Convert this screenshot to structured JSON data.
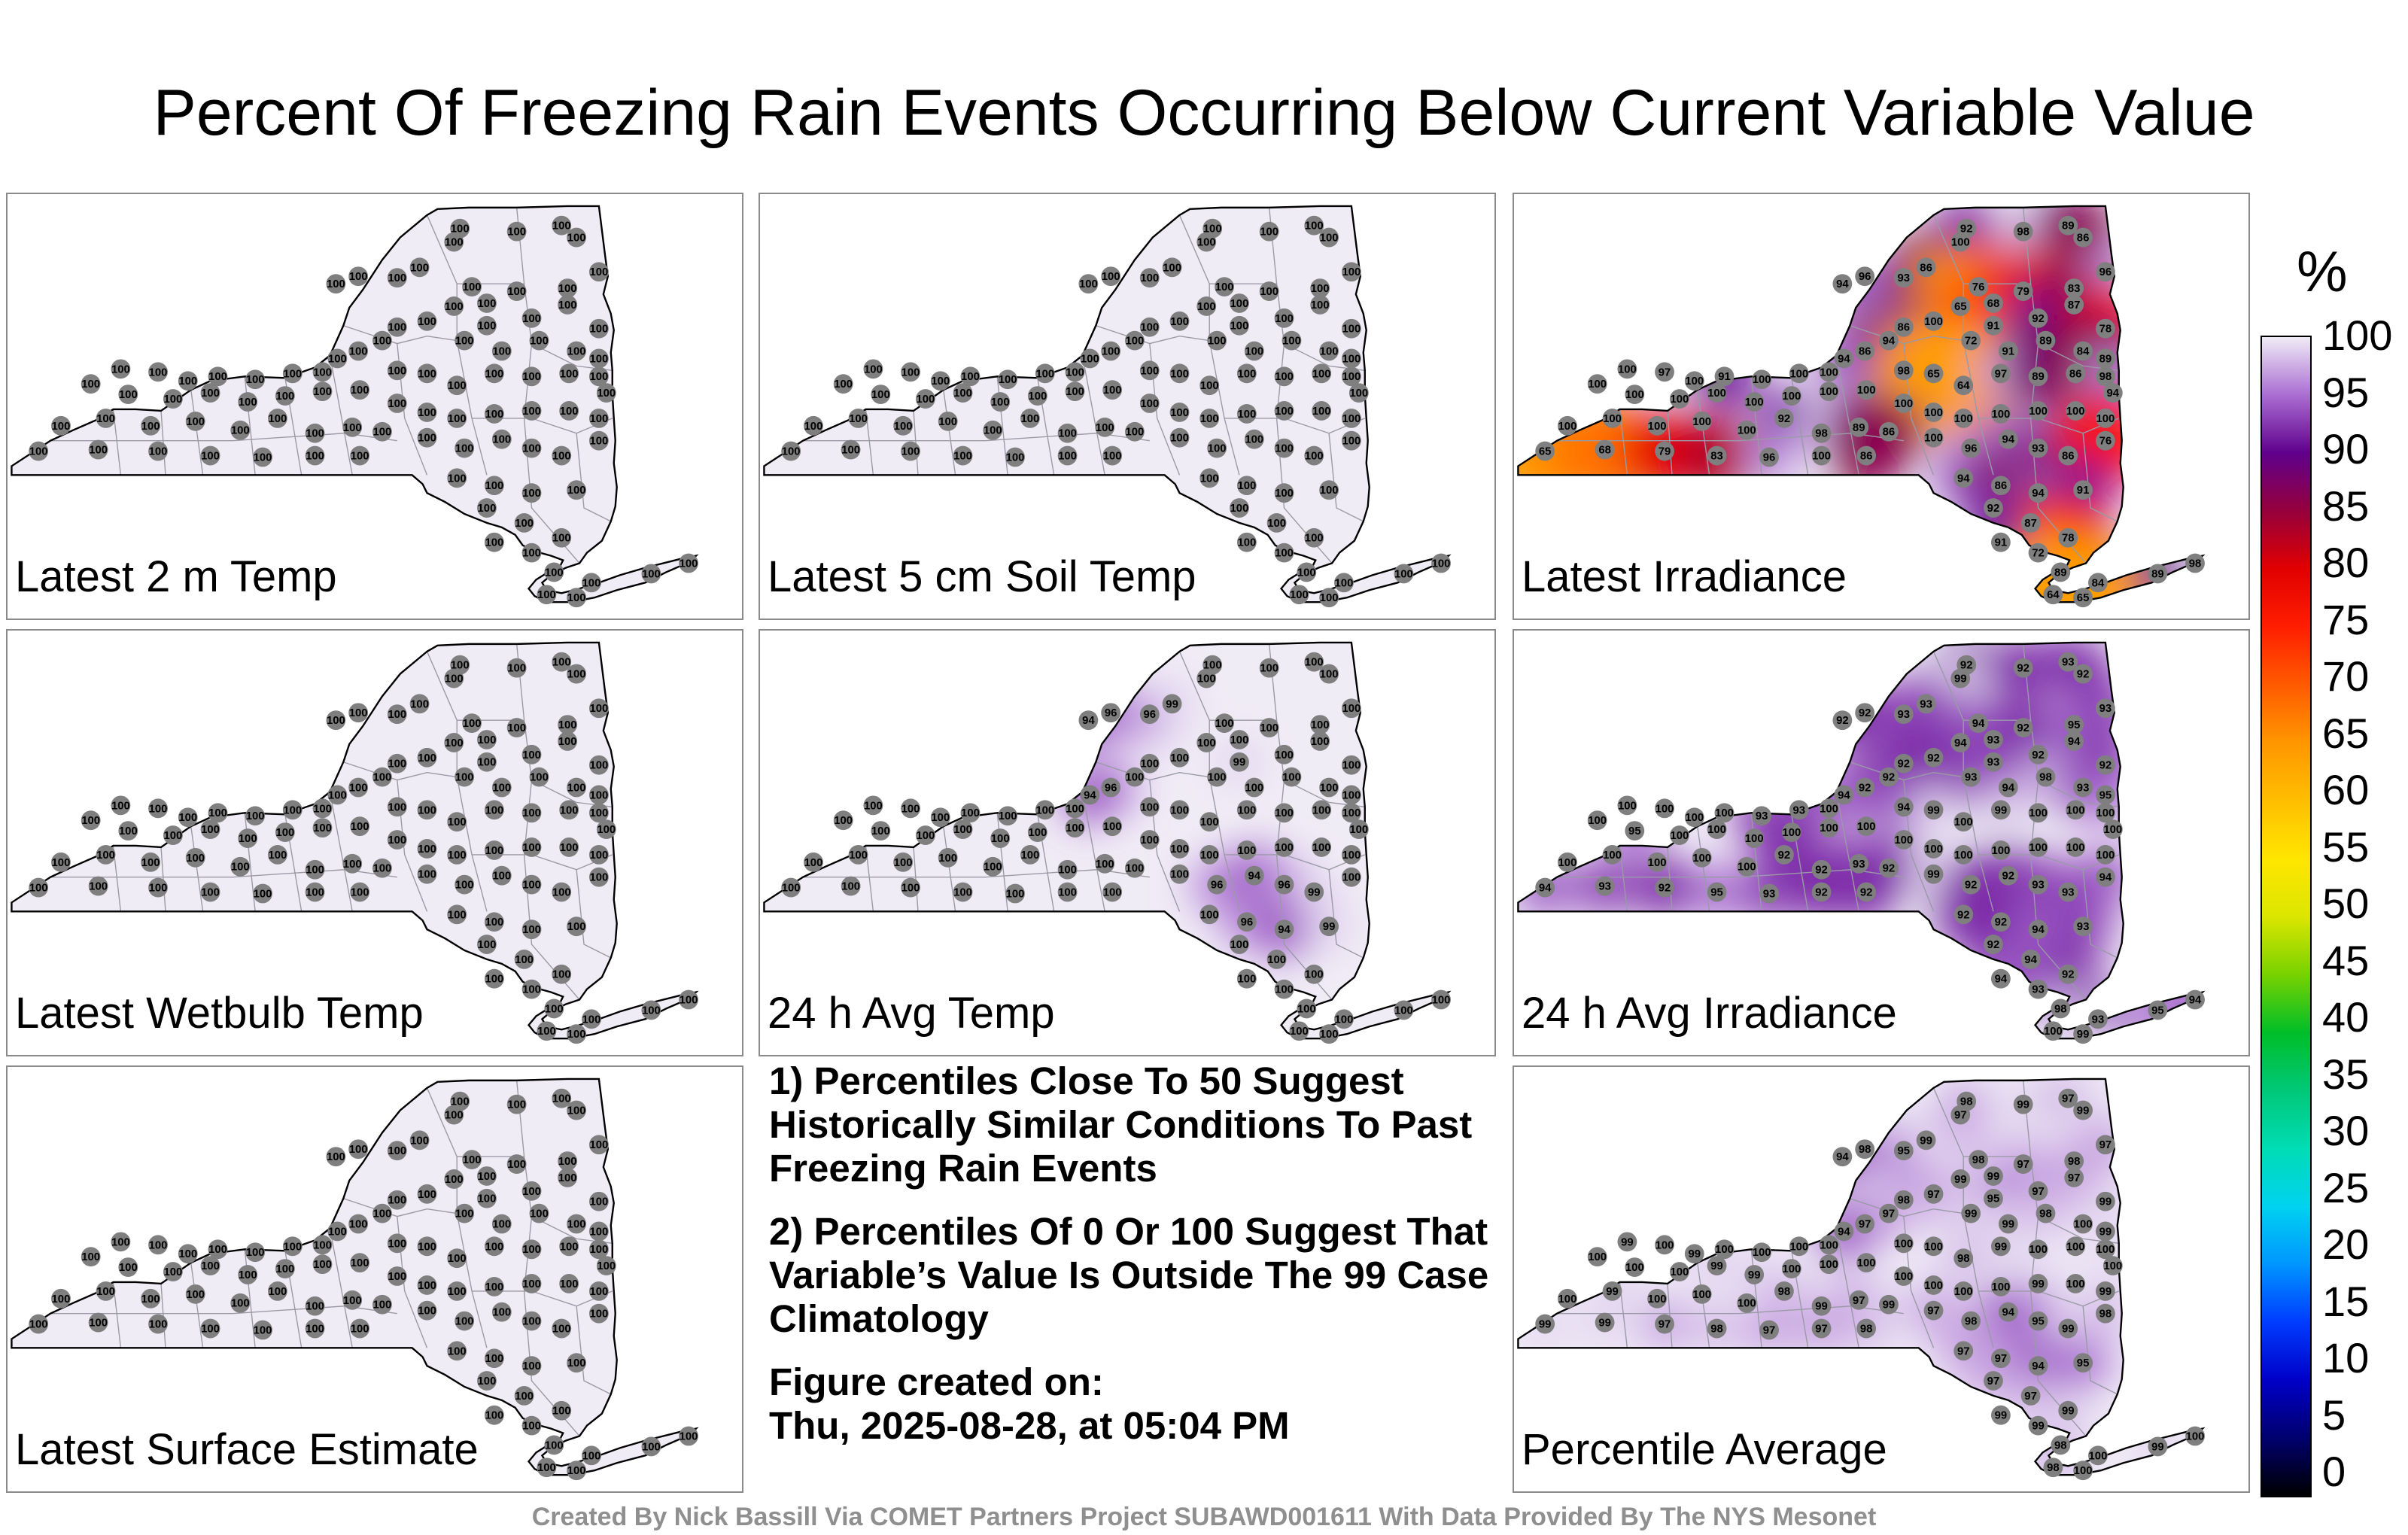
{
  "title": "Percent Of Freezing Rain Events Occurring Below Current Variable Value",
  "panels": [
    {
      "label": "Latest 2 m Temp",
      "values": [
        100,
        100,
        100,
        100,
        100,
        100,
        100,
        100,
        100,
        100,
        100,
        100,
        100,
        100,
        100,
        100,
        100,
        100,
        100,
        100,
        100,
        100,
        100,
        100,
        100,
        100,
        100,
        100,
        100,
        100,
        100,
        100,
        100,
        100,
        100,
        100,
        100,
        100,
        100,
        100,
        100,
        100,
        100,
        100,
        100,
        100,
        100,
        100,
        100,
        100,
        100,
        100,
        100,
        100,
        100,
        100,
        100,
        100,
        100,
        100,
        100,
        100,
        100,
        100
      ]
    },
    {
      "label": "Latest 5 cm Soil Temp",
      "values": [
        100,
        100,
        100,
        100,
        100,
        100,
        100,
        100,
        100,
        100,
        100,
        100,
        100,
        100,
        100,
        100,
        100,
        100,
        100,
        100,
        100,
        100,
        100,
        100,
        100,
        100,
        100,
        100,
        100,
        100,
        100,
        100,
        100,
        100,
        100,
        100,
        100,
        100,
        100,
        100,
        100,
        100,
        100,
        100,
        100,
        100,
        100,
        100,
        100,
        100,
        100,
        100,
        100,
        100,
        100,
        100,
        100,
        100,
        100,
        100,
        100,
        100,
        100,
        100
      ]
    },
    {
      "label": "Latest Irradiance",
      "values": [
        92,
        98,
        89,
        86,
        100,
        96,
        94,
        93,
        86,
        76,
        65,
        68,
        79,
        83,
        96,
        100,
        86,
        94,
        86,
        94,
        91,
        92,
        87,
        78,
        72,
        91,
        89,
        84,
        89,
        98,
        65,
        64,
        97,
        89,
        86,
        98,
        94,
        100,
        97,
        100,
        91,
        100,
        100,
        100,
        100,
        100,
        100,
        100,
        100,
        100,
        100,
        100,
        100,
        100,
        100,
        100,
        100,
        100,
        100,
        100,
        100,
        100,
        100,
        100
      ]
    },
    {
      "label": "Latest Wetbulb Temp",
      "values": [
        100,
        100,
        100,
        100,
        100,
        100,
        100,
        100,
        100,
        100,
        100,
        100,
        100,
        100,
        100,
        100,
        100,
        100,
        100,
        100,
        100,
        100,
        100,
        100,
        100,
        100,
        100,
        100,
        100,
        100,
        100,
        100,
        100,
        100,
        100,
        100,
        100,
        100,
        100,
        100,
        100,
        100,
        100,
        100,
        100,
        100,
        100,
        100,
        100,
        100,
        100,
        100,
        100,
        100,
        100,
        100,
        100,
        100,
        100,
        100,
        100,
        100,
        100,
        100
      ]
    },
    {
      "label": "24 h Avg Temp",
      "values": [
        100,
        100,
        100,
        100,
        100,
        96,
        94,
        96,
        99,
        100,
        100,
        100,
        100,
        100,
        100,
        100,
        100,
        100,
        96,
        94,
        99,
        100,
        100,
        100,
        100,
        100,
        100,
        100,
        100,
        100,
        100,
        100,
        100,
        100,
        100,
        100,
        100,
        100,
        100,
        100,
        100,
        100,
        100,
        100,
        100,
        100,
        100,
        100,
        100,
        100,
        100,
        100,
        100,
        100,
        100,
        100,
        100,
        100,
        100,
        100,
        100,
        100,
        100,
        100
      ]
    },
    {
      "label": "24 h Avg Irradiance",
      "values": [
        92,
        92,
        93,
        92,
        99,
        92,
        92,
        93,
        93,
        94,
        94,
        93,
        92,
        95,
        93,
        92,
        92,
        92,
        92,
        94,
        93,
        92,
        94,
        92,
        93,
        94,
        98,
        93,
        95,
        94,
        99,
        100,
        99,
        100,
        100,
        100,
        100,
        100,
        100,
        100,
        100,
        93,
        93,
        100,
        100,
        95,
        100,
        100,
        100,
        100,
        100,
        100,
        100,
        100,
        100,
        100,
        100,
        100,
        100,
        100,
        100,
        100,
        100,
        100
      ]
    },
    {
      "label": "Latest Surface Estimate",
      "values": [
        100,
        100,
        100,
        100,
        100,
        100,
        100,
        100,
        100,
        100,
        100,
        100,
        100,
        100,
        100,
        100,
        100,
        100,
        100,
        100,
        100,
        100,
        100,
        100,
        100,
        100,
        100,
        100,
        100,
        100,
        100,
        100,
        100,
        100,
        100,
        100,
        100,
        100,
        100,
        100,
        100,
        100,
        100,
        100,
        100,
        100,
        100,
        100,
        100,
        100,
        100,
        100,
        100,
        100,
        100,
        100,
        100,
        100,
        100,
        100,
        100,
        100,
        100,
        100
      ]
    },
    {
      "label": "Percentile Average",
      "values": [
        98,
        99,
        97,
        99,
        97,
        98,
        94,
        95,
        99,
        98,
        99,
        99,
        97,
        98,
        97,
        97,
        98,
        97,
        97,
        94,
        95,
        97,
        97,
        99,
        99,
        99,
        98,
        100,
        99,
        100,
        100,
        98,
        99,
        100,
        100,
        100,
        100,
        99,
        100,
        99,
        100,
        100,
        100,
        100,
        100,
        100,
        100,
        99,
        99,
        100,
        100,
        100,
        100,
        100,
        100,
        100,
        99,
        100,
        99,
        100,
        99,
        100,
        100,
        100
      ]
    }
  ],
  "notes": {
    "n1": "1) Percentiles Close To 50 Suggest Historically Similar Conditions To Past Freezing Rain Events",
    "n2": "2) Percentiles Of 0 Or 100 Suggest That Variable’s Value Is Outside The 99 Case Climatology",
    "n3a": "Figure created on:",
    "n3b": "Thu, 2025-08-28, at 05:04 PM"
  },
  "colorbar": {
    "unit": "%",
    "ticks": [
      "100",
      "95",
      "90",
      "85",
      "80",
      "75",
      "70",
      "65",
      "60",
      "55",
      "50",
      "45",
      "40",
      "35",
      "30",
      "25",
      "20",
      "15",
      "10",
      "5",
      "0"
    ]
  },
  "credit": "Created By Nick Bassill Via COMET Partners Project SUBAWD001611 With Data Provided By The NYS Mesonet"
}
